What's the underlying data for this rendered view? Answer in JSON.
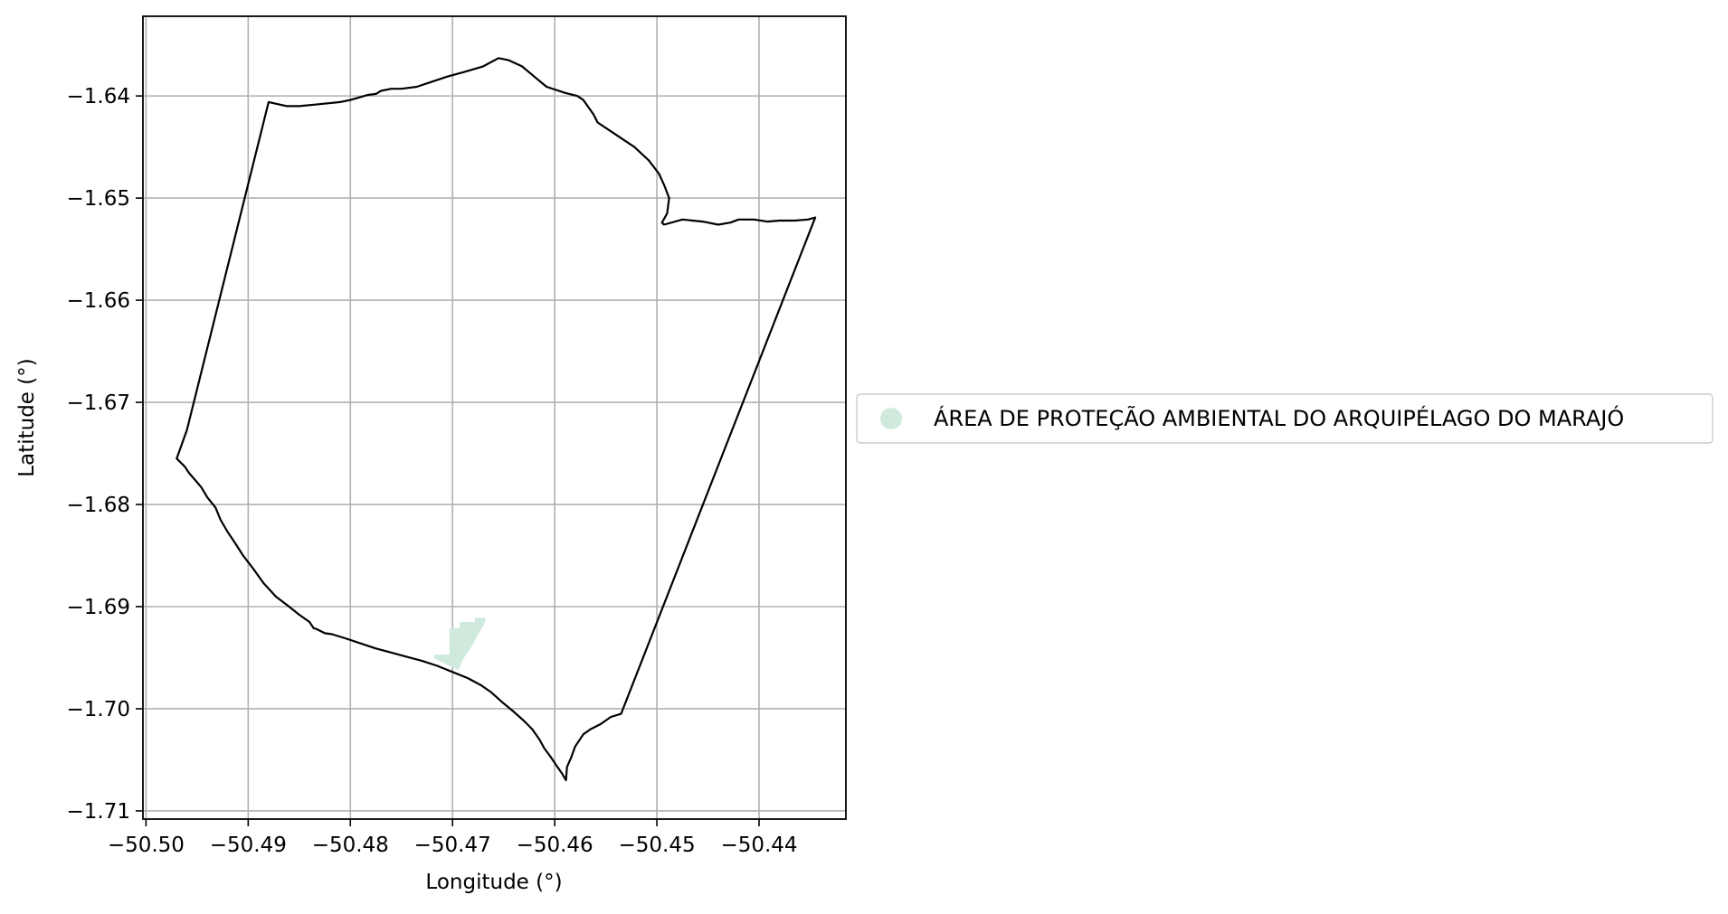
{
  "chart_data": {
    "type": "map",
    "xlabel": "Longitude (°)",
    "ylabel": "Latitude (°)",
    "xlim": [
      -50.5003,
      -50.4315
    ],
    "ylim": [
      -1.7108,
      -1.6322
    ],
    "grid": true,
    "xticks": [
      -50.5,
      -50.49,
      -50.48,
      -50.47,
      -50.46,
      -50.45,
      -50.44
    ],
    "xtick_labels": [
      "−50.50",
      "−50.49",
      "−50.48",
      "−50.47",
      "−50.46",
      "−50.45",
      "−50.44"
    ],
    "yticks": [
      -1.64,
      -1.65,
      -1.66,
      -1.67,
      -1.68,
      -1.69,
      -1.7,
      -1.71
    ],
    "ytick_labels": [
      "−1.64",
      "−1.65",
      "−1.66",
      "−1.67",
      "−1.68",
      "−1.69",
      "−1.70",
      "−1.71"
    ],
    "legend": {
      "placement": "outside-right",
      "entries": [
        {
          "label": "ÁREA DE PROTEÇÃO AMBIENTAL DO ARQUIPÉLAGO DO MARAJÓ",
          "color": "#cfeadd"
        }
      ]
    },
    "boundary": {
      "color": "#000000",
      "points": [
        [
          -50.488,
          -1.6406
        ],
        [
          -50.4862,
          -1.641
        ],
        [
          -50.485,
          -1.641
        ],
        [
          -50.483,
          -1.6408
        ],
        [
          -50.481,
          -1.6406
        ],
        [
          -50.48,
          -1.6404
        ],
        [
          -50.479,
          -1.6401
        ],
        [
          -50.4783,
          -1.6399
        ],
        [
          -50.4775,
          -1.6398
        ],
        [
          -50.477,
          -1.6395
        ],
        [
          -50.476,
          -1.6393
        ],
        [
          -50.475,
          -1.6393
        ],
        [
          -50.4735,
          -1.6391
        ],
        [
          -50.472,
          -1.6386
        ],
        [
          -50.4705,
          -1.6381
        ],
        [
          -50.469,
          -1.6377
        ],
        [
          -50.467,
          -1.6371
        ],
        [
          -50.4655,
          -1.6363
        ],
        [
          -50.4645,
          -1.6365
        ],
        [
          -50.4632,
          -1.6371
        ],
        [
          -50.462,
          -1.6381
        ],
        [
          -50.4608,
          -1.6391
        ],
        [
          -50.459,
          -1.6397
        ],
        [
          -50.4578,
          -1.64
        ],
        [
          -50.4572,
          -1.6404
        ],
        [
          -50.4562,
          -1.6418
        ],
        [
          -50.4558,
          -1.6426
        ],
        [
          -50.454,
          -1.6438
        ],
        [
          -50.4522,
          -1.645
        ],
        [
          -50.4508,
          -1.6463
        ],
        [
          -50.4498,
          -1.6476
        ],
        [
          -50.4493,
          -1.6487
        ],
        [
          -50.4488,
          -1.65
        ],
        [
          -50.449,
          -1.6515
        ],
        [
          -50.4495,
          -1.6524
        ],
        [
          -50.4493,
          -1.6526
        ],
        [
          -50.4475,
          -1.6521
        ],
        [
          -50.4455,
          -1.6523
        ],
        [
          -50.444,
          -1.6526
        ],
        [
          -50.4428,
          -1.6524
        ],
        [
          -50.442,
          -1.6521
        ],
        [
          -50.4405,
          -1.6521
        ],
        [
          -50.4392,
          -1.6523
        ],
        [
          -50.438,
          -1.6522
        ],
        [
          -50.4365,
          -1.6522
        ],
        [
          -50.4352,
          -1.6521
        ],
        [
          -50.4345,
          -1.6519
        ],
        [
          -50.4535,
          -1.7005
        ],
        [
          -50.4545,
          -1.7008
        ],
        [
          -50.4555,
          -1.7015
        ],
        [
          -50.4565,
          -1.702
        ],
        [
          -50.4572,
          -1.7025
        ],
        [
          -50.458,
          -1.7037
        ],
        [
          -50.4584,
          -1.7048
        ],
        [
          -50.4588,
          -1.7057
        ],
        [
          -50.4589,
          -1.707
        ],
        [
          -50.4593,
          -1.7063
        ],
        [
          -50.4598,
          -1.7056
        ],
        [
          -50.4604,
          -1.7047
        ],
        [
          -50.461,
          -1.7039
        ],
        [
          -50.4615,
          -1.703
        ],
        [
          -50.4622,
          -1.702
        ],
        [
          -50.463,
          -1.7012
        ],
        [
          -50.464,
          -1.7003
        ],
        [
          -50.4652,
          -1.6993
        ],
        [
          -50.4662,
          -1.6984
        ],
        [
          -50.4672,
          -1.6977
        ],
        [
          -50.4685,
          -1.697
        ],
        [
          -50.47,
          -1.6964
        ],
        [
          -50.4715,
          -1.6958
        ],
        [
          -50.473,
          -1.6953
        ],
        [
          -50.4745,
          -1.6949
        ],
        [
          -50.476,
          -1.6945
        ],
        [
          -50.4775,
          -1.6941
        ],
        [
          -50.479,
          -1.6936
        ],
        [
          -50.4805,
          -1.6931
        ],
        [
          -50.4818,
          -1.6927
        ],
        [
          -50.4825,
          -1.6926
        ],
        [
          -50.4833,
          -1.6922
        ],
        [
          -50.4836,
          -1.6921
        ],
        [
          -50.484,
          -1.6915
        ],
        [
          -50.485,
          -1.6908
        ],
        [
          -50.486,
          -1.69
        ],
        [
          -50.4873,
          -1.689
        ],
        [
          -50.4885,
          -1.6877
        ],
        [
          -50.4895,
          -1.6863
        ],
        [
          -50.4905,
          -1.685
        ],
        [
          -50.4912,
          -1.6839
        ],
        [
          -50.492,
          -1.6827
        ],
        [
          -50.4927,
          -1.6815
        ],
        [
          -50.4932,
          -1.6803
        ],
        [
          -50.494,
          -1.6793
        ],
        [
          -50.4946,
          -1.6783
        ],
        [
          -50.4952,
          -1.6776
        ],
        [
          -50.4958,
          -1.6769
        ],
        [
          -50.4962,
          -1.6763
        ],
        [
          -50.497,
          -1.6755
        ],
        [
          -50.496,
          -1.6727
        ],
        [
          -50.488,
          -1.6406
        ]
      ]
    },
    "protected_area": {
      "color": "#cfeadd",
      "points": [
        [
          -50.4718,
          -1.6947
        ],
        [
          -50.4703,
          -1.6947
        ],
        [
          -50.4703,
          -1.6921
        ],
        [
          -50.4693,
          -1.6921
        ],
        [
          -50.4693,
          -1.6915
        ],
        [
          -50.4678,
          -1.6915
        ],
        [
          -50.4678,
          -1.6911
        ],
        [
          -50.4668,
          -1.6911
        ],
        [
          -50.4668,
          -1.6915
        ],
        [
          -50.4682,
          -1.694
        ],
        [
          -50.469,
          -1.6952
        ],
        [
          -50.4694,
          -1.6962
        ],
        [
          -50.4718,
          -1.6951
        ]
      ]
    }
  }
}
